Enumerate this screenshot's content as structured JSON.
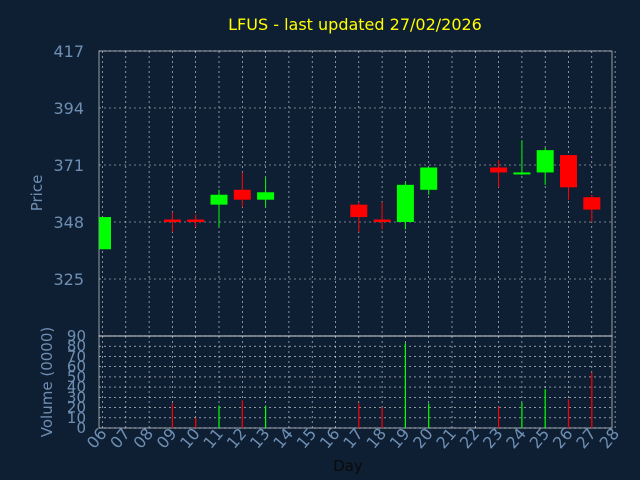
{
  "chart_data": [
    {
      "type": "candlestick",
      "title": "LFUS - last updated 27/02/2026",
      "ylabel": "Price",
      "ylim": [
        302,
        417
      ],
      "yticks": [
        417,
        394,
        371,
        348,
        325
      ],
      "colors": {
        "up": "#00ff00",
        "down": "#ff0000"
      },
      "candles": [
        {
          "day": "06",
          "open": 337,
          "close": 350,
          "high": 350,
          "low": 337
        },
        {
          "day": "09",
          "open": 349,
          "close": 348,
          "high": 352,
          "low": 344
        },
        {
          "day": "10",
          "open": 349,
          "close": 348,
          "high": 351,
          "low": 346
        },
        {
          "day": "11",
          "open": 355,
          "close": 359,
          "high": 361,
          "low": 346
        },
        {
          "day": "12",
          "open": 361,
          "close": 357,
          "high": 368,
          "low": 354
        },
        {
          "day": "13",
          "open": 357,
          "close": 360,
          "high": 366,
          "low": 354
        },
        {
          "day": "17",
          "open": 355,
          "close": 350,
          "high": 356,
          "low": 344
        },
        {
          "day": "18",
          "open": 349,
          "close": 348,
          "high": 356,
          "low": 345
        },
        {
          "day": "19",
          "open": 348,
          "close": 363,
          "high": 364,
          "low": 345
        },
        {
          "day": "20",
          "open": 361,
          "close": 370,
          "high": 370,
          "low": 359
        },
        {
          "day": "23",
          "open": 370,
          "close": 368,
          "high": 373,
          "low": 362
        },
        {
          "day": "24",
          "open": 368,
          "close": 368,
          "high": 381,
          "low": 367
        },
        {
          "day": "25",
          "open": 368,
          "close": 377,
          "high": 378,
          "low": 363
        },
        {
          "day": "26",
          "open": 375,
          "close": 362,
          "high": 375,
          "low": 357
        },
        {
          "day": "27",
          "open": 358,
          "close": 353,
          "high": 359,
          "low": 348
        }
      ]
    },
    {
      "type": "bar",
      "ylabel": "Volume (0000)",
      "ylim": [
        0,
        90
      ],
      "yticks": [
        90,
        80,
        70,
        60,
        50,
        40,
        30,
        20,
        10,
        0
      ],
      "xlabel": "Day",
      "categories": [
        "06",
        "07",
        "08",
        "09",
        "10",
        "11",
        "12",
        "13",
        "14",
        "15",
        "16",
        "17",
        "18",
        "19",
        "20",
        "21",
        "22",
        "23",
        "24",
        "25",
        "26",
        "27",
        "28"
      ],
      "values": [
        null,
        null,
        null,
        24,
        10,
        22,
        27,
        22,
        null,
        null,
        null,
        24,
        20,
        83,
        24,
        null,
        null,
        21,
        25,
        38,
        28,
        54,
        null
      ],
      "bar_colors": [
        null,
        null,
        null,
        "down",
        "down",
        "up",
        "down",
        "up",
        null,
        null,
        null,
        "down",
        "down",
        "up",
        "up",
        null,
        null,
        "down",
        "up",
        "up",
        "down",
        "down",
        null
      ]
    }
  ]
}
